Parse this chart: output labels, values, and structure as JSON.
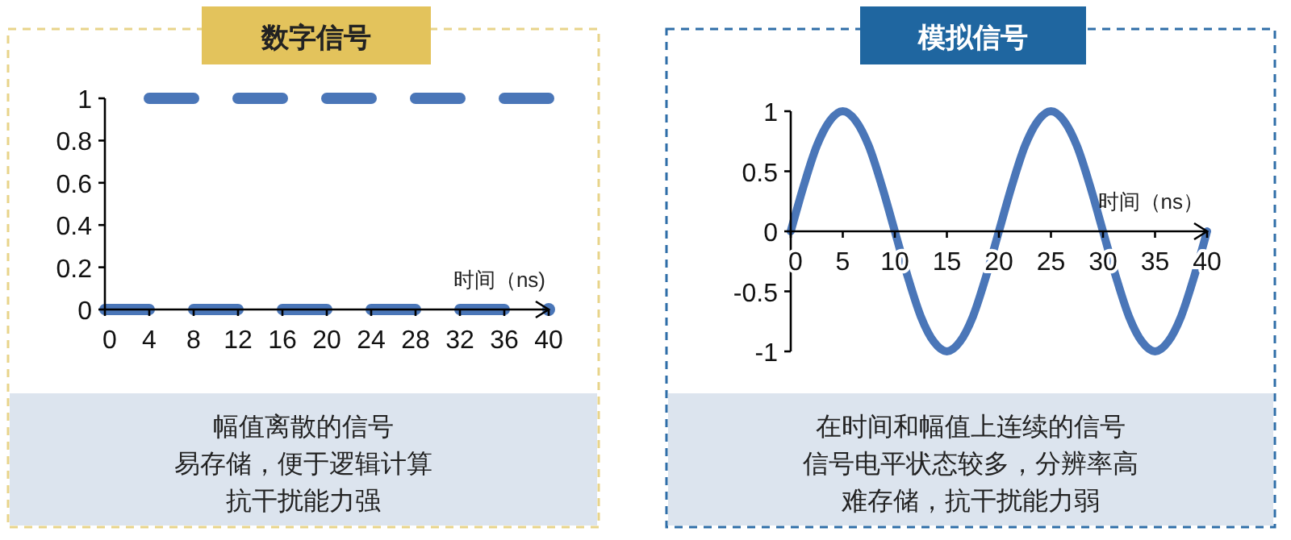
{
  "chart_data": [
    {
      "type": "line",
      "title": "数字信号",
      "xlabel": "时间（ns)",
      "xlim": [
        0,
        40
      ],
      "xticks": [
        0,
        4,
        8,
        12,
        16,
        20,
        24,
        28,
        32,
        36,
        40
      ],
      "ylim": [
        0,
        1
      ],
      "yticks": [
        0,
        0.2,
        0.4,
        0.6,
        0.8,
        1
      ],
      "series": [
        {
          "color": "#4a76b8",
          "x": [
            0,
            4
          ],
          "values": [
            0,
            0
          ]
        },
        {
          "color": "#4a76b8",
          "x": [
            4,
            8
          ],
          "values": [
            1,
            1
          ]
        },
        {
          "color": "#4a76b8",
          "x": [
            8,
            12
          ],
          "values": [
            0,
            0
          ]
        },
        {
          "color": "#4a76b8",
          "x": [
            12,
            16
          ],
          "values": [
            1,
            1
          ]
        },
        {
          "color": "#4a76b8",
          "x": [
            16,
            20
          ],
          "values": [
            0,
            0
          ]
        },
        {
          "color": "#4a76b8",
          "x": [
            20,
            24
          ],
          "values": [
            1,
            1
          ]
        },
        {
          "color": "#4a76b8",
          "x": [
            24,
            28
          ],
          "values": [
            0,
            0
          ]
        },
        {
          "color": "#4a76b8",
          "x": [
            28,
            32
          ],
          "values": [
            1,
            1
          ]
        },
        {
          "color": "#4a76b8",
          "x": [
            32,
            36
          ],
          "values": [
            0,
            0
          ]
        },
        {
          "color": "#4a76b8",
          "x": [
            36,
            40
          ],
          "values": [
            1,
            1
          ]
        },
        {
          "color": "#4a76b8",
          "x": [
            40
          ],
          "values": [
            0
          ],
          "marker": "circle"
        }
      ],
      "annotations": [
        "幅值离散的信号",
        "易存储，便于逻辑计算",
        "抗干扰能力强"
      ]
    },
    {
      "type": "line",
      "title": "模拟信号",
      "xlabel": "时间（ns）",
      "xlim": [
        0,
        40
      ],
      "xticks": [
        0,
        5,
        10,
        15,
        20,
        25,
        30,
        35,
        40
      ],
      "ylim": [
        -1,
        1
      ],
      "yticks": [
        -1,
        -0.5,
        0,
        0.5,
        1
      ],
      "series": [
        {
          "color": "#4a76b8",
          "x": [
            0,
            1.25,
            2.5,
            3.75,
            5,
            6.25,
            7.5,
            8.75,
            10,
            11.25,
            12.5,
            13.75,
            15,
            16.25,
            17.5,
            18.75,
            20,
            21.25,
            22.5,
            23.75,
            25,
            26.25,
            27.5,
            28.75,
            30,
            31.25,
            32.5,
            33.75,
            35,
            36.25,
            37.5,
            38.75,
            40
          ],
          "values": [
            0,
            0.38,
            0.71,
            0.92,
            1,
            0.92,
            0.71,
            0.38,
            0,
            -0.38,
            -0.71,
            -0.92,
            -1,
            -0.92,
            -0.71,
            -0.38,
            0,
            0.38,
            0.71,
            0.92,
            1,
            0.92,
            0.71,
            0.38,
            0,
            -0.38,
            -0.71,
            -0.92,
            -1,
            -0.92,
            -0.71,
            -0.38,
            0
          ]
        }
      ],
      "annotations": [
        "在时间和幅值上连续的信号",
        "信号电平状态较多，分辨率高",
        "难存储，抗干扰能力弱"
      ]
    }
  ]
}
